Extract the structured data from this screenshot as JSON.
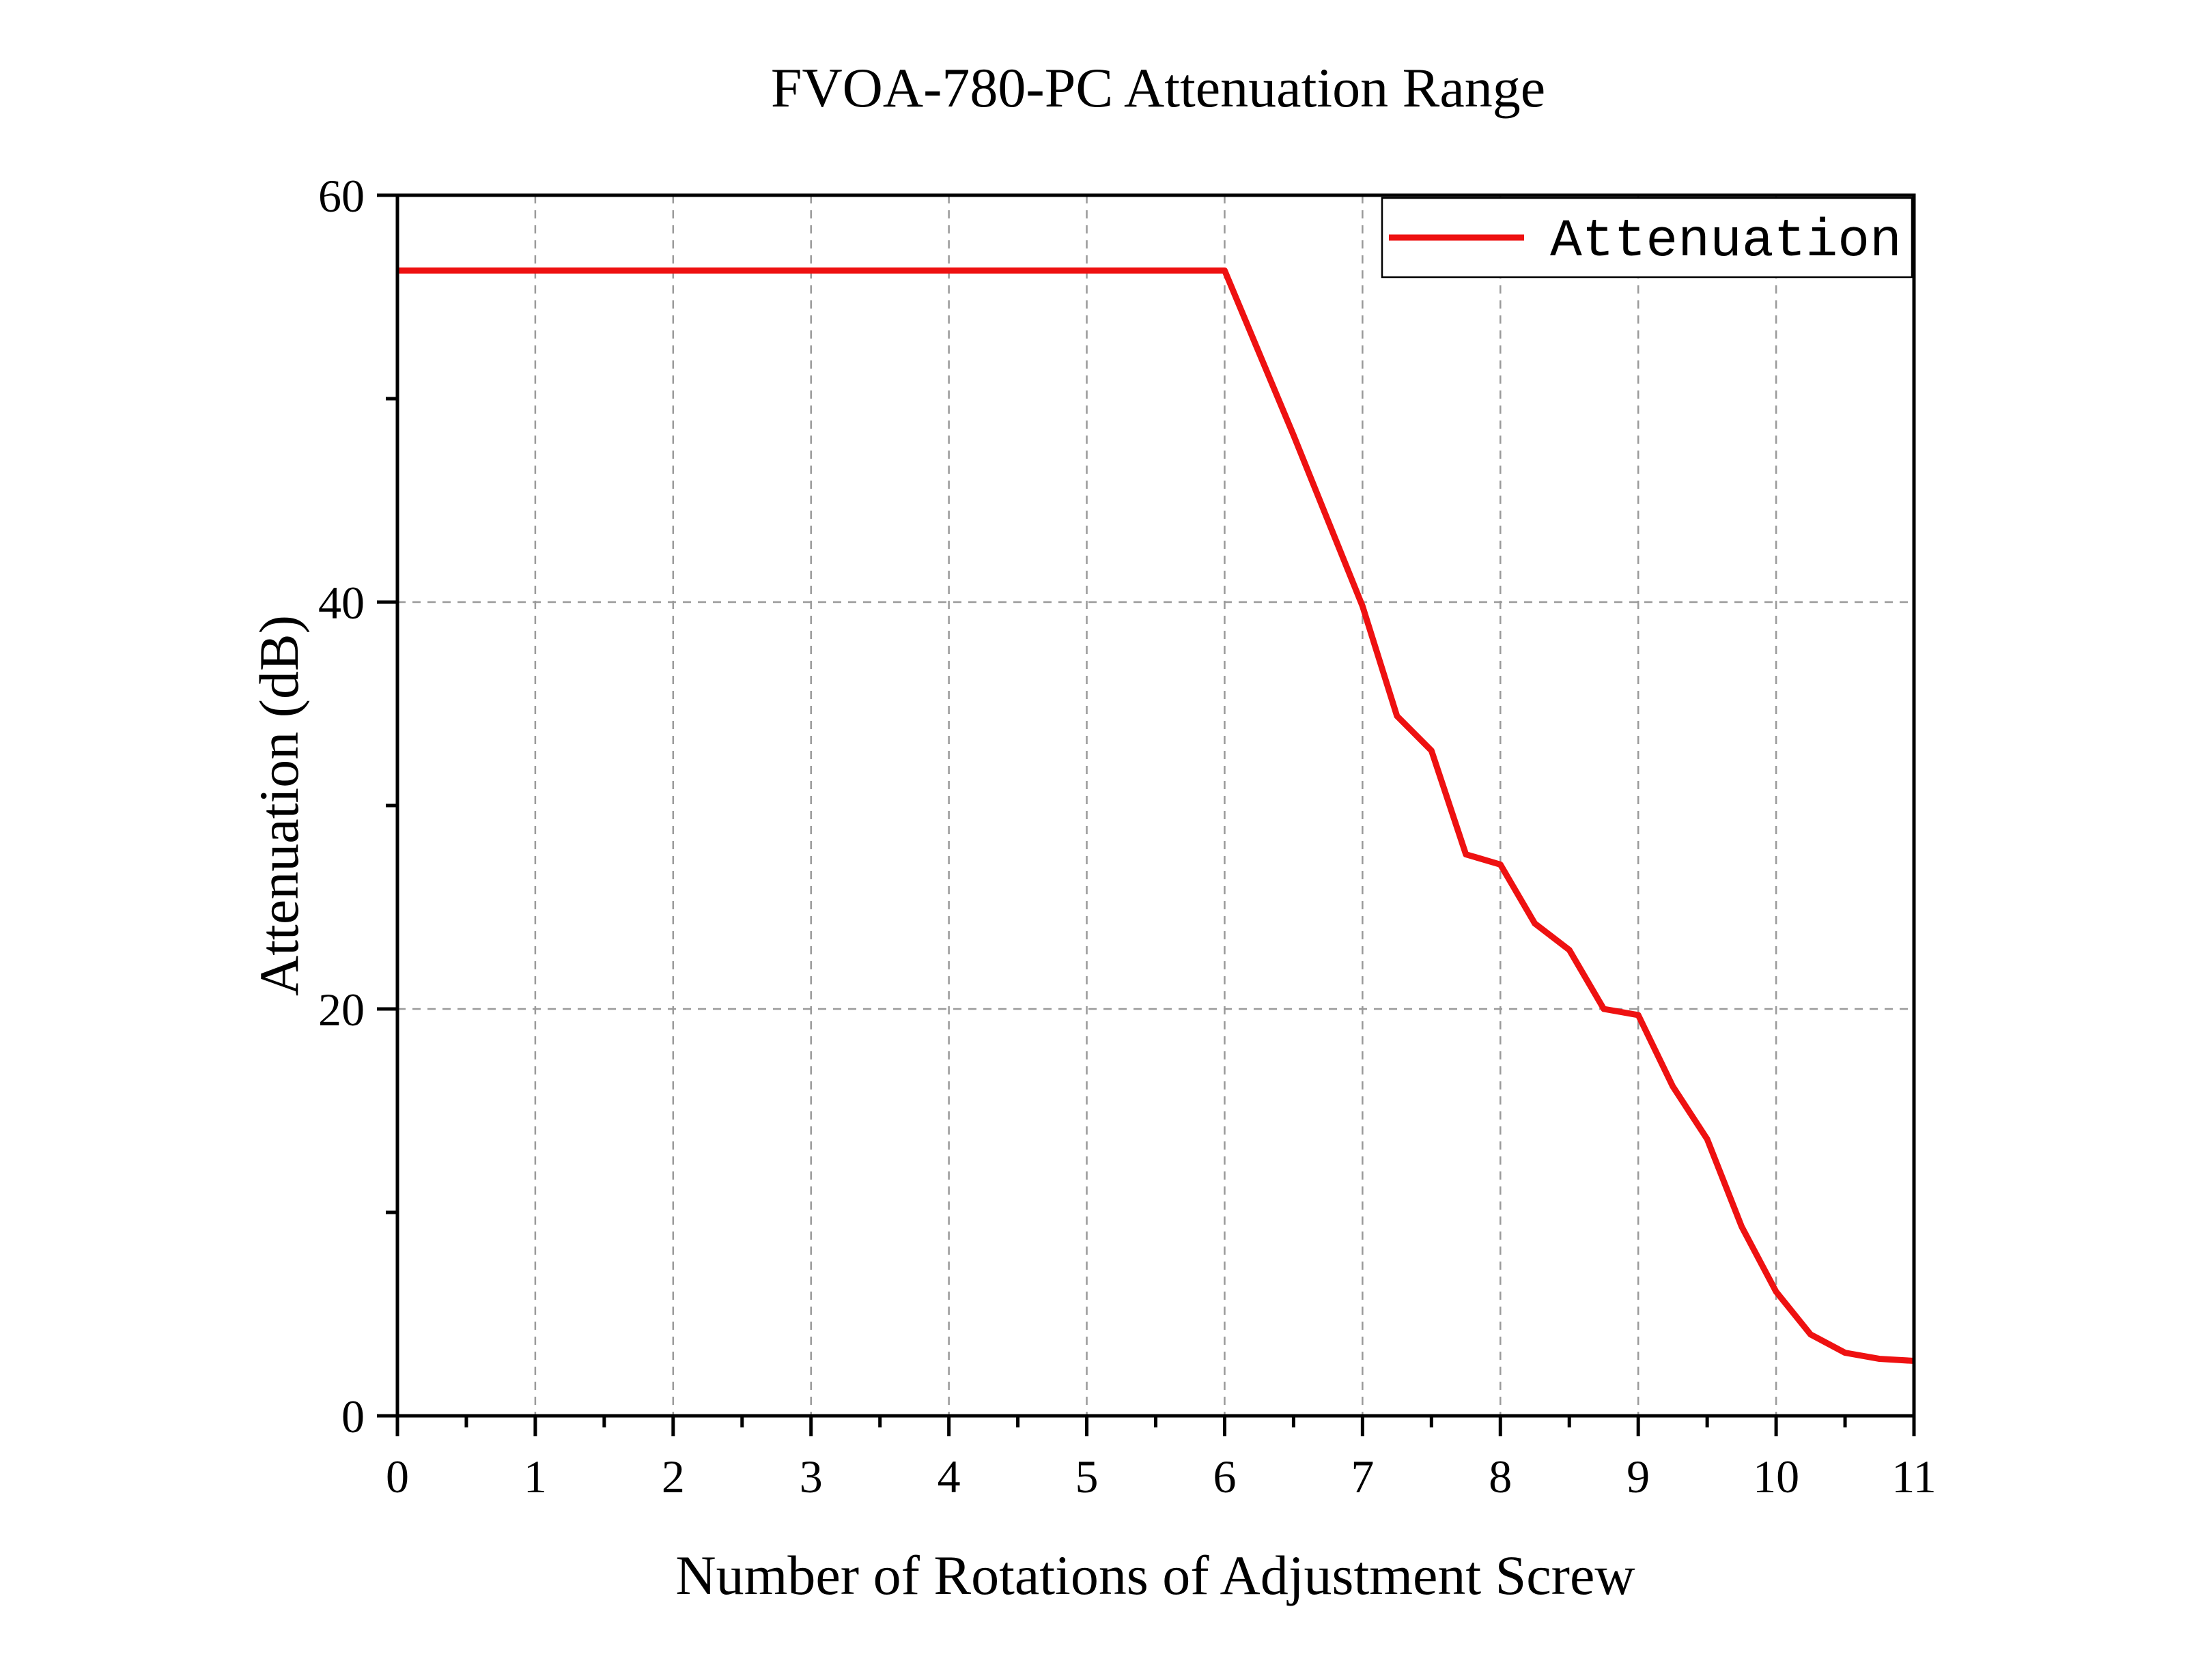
{
  "chart_data": {
    "type": "line",
    "title": "FVOA-780-PC Attenuation Range",
    "xlabel": "Number of Rotations of Adjustment  Screw",
    "ylabel": "Attenuation (dB)",
    "xlim": [
      0,
      11
    ],
    "ylim": [
      0,
      60
    ],
    "x_ticks": [
      "0",
      "1",
      "2",
      "3",
      "4",
      "5",
      "6",
      "7",
      "8",
      "9",
      "10",
      "11"
    ],
    "y_ticks": [
      "0",
      "20",
      "40",
      "60"
    ],
    "grid": true,
    "legend": "top-right",
    "series": [
      {
        "name": "Attenuation",
        "color": "#ee1111",
        "x": [
          0,
          1,
          2,
          3,
          4,
          5,
          6,
          6.5,
          7,
          7.25,
          7.5,
          7.75,
          8,
          8.25,
          8.5,
          8.75,
          9,
          9.25,
          9.5,
          9.75,
          10,
          10.25,
          10.5,
          10.75,
          11
        ],
        "y": [
          56.3,
          56.3,
          56.3,
          56.3,
          56.3,
          56.3,
          56.3,
          48.2,
          39.8,
          34.4,
          32.7,
          27.6,
          27.1,
          24.2,
          22.9,
          20.0,
          19.7,
          16.2,
          13.6,
          9.3,
          6.1,
          4.0,
          3.1,
          2.8,
          2.7
        ]
      }
    ]
  }
}
